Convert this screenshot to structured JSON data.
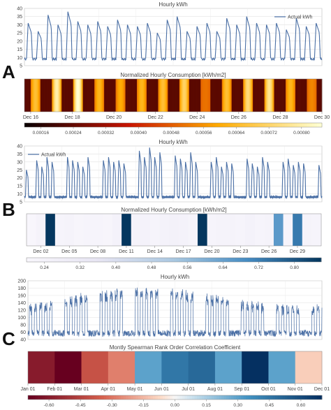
{
  "panels": [
    {
      "letter": "A"
    },
    {
      "letter": "B"
    },
    {
      "letter": "C"
    }
  ],
  "chart_data": [
    {
      "id": "A-line",
      "type": "line",
      "title": "Hourly kWh",
      "legend": "Actual kWh",
      "legend_position": "top-right",
      "ylim": [
        5,
        40
      ],
      "yticks": [
        5,
        10,
        15,
        20,
        25,
        30,
        35,
        40
      ],
      "grid": true,
      "x_start": "Dec 16",
      "x_end": "Dec 30",
      "days": 14,
      "daily_peaks": [
        31,
        26,
        36,
        30,
        38,
        32,
        30,
        32,
        29,
        33,
        30,
        29,
        31,
        25,
        33,
        35,
        26,
        29,
        31,
        26,
        34,
        30,
        35,
        31,
        30,
        31,
        27,
        34,
        29,
        31
      ],
      "base": 9
    },
    {
      "id": "A-heat",
      "type": "heatmap",
      "title": "Normalized Hourly Consumption [kWh/m2]",
      "colormap": "hot",
      "xticks": [
        "Dec 16",
        "Dec 18",
        "Dec 20",
        "Dec 22",
        "Dec 24",
        "Dec 26",
        "Dec 28",
        "Dec 30"
      ],
      "colorbar_ticks": [
        "0.00016",
        "0.00024",
        "0.00032",
        "0.00040",
        "0.00048",
        "0.00056",
        "0.00064",
        "0.00072",
        "0.00080"
      ],
      "vmin": 0.00012,
      "vmax": 0.00085
    },
    {
      "id": "B-line",
      "type": "line",
      "title": "Hourly kWh",
      "legend": "Actual kWh",
      "legend_position": "top-left",
      "ylim": [
        5,
        40
      ],
      "yticks": [
        5,
        10,
        15,
        20,
        25,
        30,
        35,
        40
      ],
      "grid": true,
      "x_start": "Dec 01",
      "x_end": "Dec 30",
      "days": 29,
      "daily_peaks": [
        25,
        10,
        31,
        27,
        33,
        30,
        10,
        10,
        33,
        31,
        30,
        27,
        33,
        10,
        10,
        31,
        33,
        30,
        31,
        29,
        10,
        10,
        37,
        33,
        39,
        33,
        36,
        10,
        10,
        34,
        32,
        30,
        36,
        30,
        10,
        10,
        30,
        33,
        27,
        30,
        29,
        10,
        10,
        32,
        29,
        27,
        33,
        30,
        10,
        10,
        30,
        32,
        28,
        30,
        29,
        10,
        10,
        28
      ],
      "base": 8
    },
    {
      "id": "B-heat",
      "type": "heatmap",
      "title": "Normalized Hourly Consumption [kWh/m2]",
      "colormap": "PuBu",
      "xticks": [
        "Dec 02",
        "Dec 05",
        "Dec 08",
        "Dec 11",
        "Dec 14",
        "Dec 17",
        "Dec 20",
        "Dec 23",
        "Dec 26",
        "Dec 29"
      ],
      "colorbar_ticks": [
        "0.24",
        "0.32",
        "0.40",
        "0.48",
        "0.56",
        "0.64",
        "0.72",
        "0.80"
      ],
      "vmin": 0.2,
      "vmax": 0.86,
      "day_values": [
        0.2,
        0.23,
        0.86,
        0.22,
        0.23,
        0.21,
        0.22,
        0.22,
        0.21,
        0.24,
        0.86,
        0.23,
        0.24,
        0.22,
        0.24,
        0.25,
        0.24,
        0.22,
        0.86,
        0.22,
        0.23,
        0.23,
        0.22,
        0.24,
        0.22,
        0.23,
        0.66,
        0.22,
        0.73,
        0.23,
        0.22
      ]
    },
    {
      "id": "C-line",
      "type": "line",
      "title": "Hourly kWh",
      "ylim": [
        40,
        200
      ],
      "yticks": [
        40,
        60,
        80,
        100,
        120,
        140,
        160,
        180,
        200
      ],
      "grid": true,
      "x_start": "Jan 01",
      "x_end": "Dec 01",
      "months": 11
    },
    {
      "id": "C-heat",
      "type": "heatmap",
      "title": "Montly Spearman Rank Order Correlation Coefficient",
      "colormap": "RdBu",
      "xticks": [
        "Jan 01",
        "Feb 01",
        "Mar 01",
        "Apr 01",
        "May 01",
        "Jun 01",
        "Jul 01",
        "Aug 01",
        "Sep 01",
        "Oct 01",
        "Nov 01",
        "Dec 01"
      ],
      "colorbar_ticks": [
        "-0.60",
        "-0.45",
        "-0.30",
        "-0.15",
        "0.00",
        "0.15",
        "0.30",
        "0.45",
        "0.60"
      ],
      "vmin": -0.7,
      "vmax": 0.7,
      "month_values": [
        -0.6,
        -0.7,
        -0.4,
        -0.28,
        0.3,
        0.45,
        0.5,
        0.3,
        0.7,
        0.3,
        -0.1
      ]
    }
  ]
}
